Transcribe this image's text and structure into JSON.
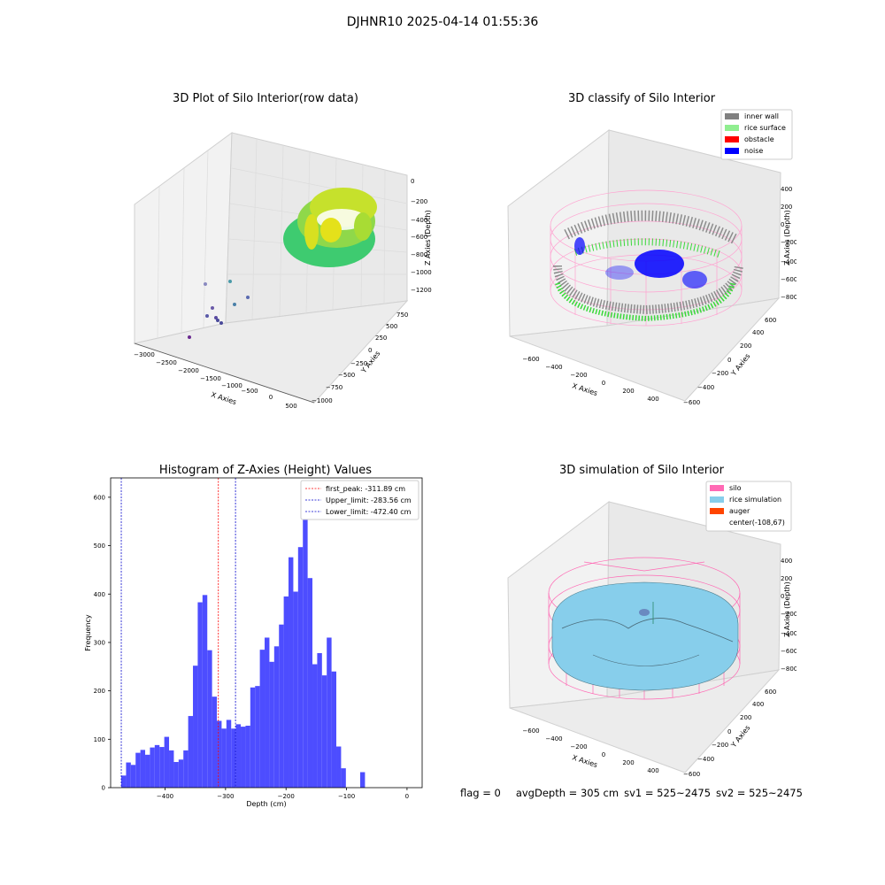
{
  "figure": {
    "suptitle": "DJHNR10 2025-04-14 01:55:36",
    "colors": {
      "hist_bar": "#4d4dff",
      "first_peak_line": "#ff0000",
      "limit_line": "#0000cc",
      "inner_wall": "#808080",
      "rice_surface": "#90ee90",
      "obstacle": "#ff0000",
      "noise": "#0000ff",
      "silo": "#ff69b4",
      "rice_simulation": "#87ceeb",
      "auger": "#ff4500"
    }
  },
  "plot_raw": {
    "title": "3D Plot of Silo Interior(row data)",
    "xlabel": "X Axies",
    "ylabel": "Y Axies",
    "zlabel": "Z Axies (Depth)",
    "xticks": [
      "−3000",
      "−2500",
      "−2000",
      "−1500",
      "−1000",
      "−500",
      "0",
      "500"
    ],
    "yticks": [
      "−1000",
      "−750",
      "−500",
      "−250",
      "0",
      "250",
      "500",
      "750"
    ],
    "zticks": [
      "0",
      "−200",
      "−400",
      "−600",
      "−800",
      "−1000",
      "−1200"
    ]
  },
  "plot_classify": {
    "title": "3D classify of Silo Interior",
    "xlabel": "X Axies",
    "ylabel": "Y Axies",
    "zlabel": "Z Axies (Depth)",
    "xticks": [
      "−600",
      "−400",
      "−200",
      "0",
      "200",
      "400"
    ],
    "yticks": [
      "−600",
      "−400",
      "−200",
      "0",
      "200",
      "400",
      "600"
    ],
    "zticks": [
      "400",
      "200",
      "0",
      "−200",
      "−400",
      "−600",
      "−800"
    ],
    "legend": [
      {
        "label": "inner wall",
        "color": "#808080"
      },
      {
        "label": "rice surface",
        "color": "#90ee90"
      },
      {
        "label": "obstacle",
        "color": "#ff0000"
      },
      {
        "label": "noise",
        "color": "#0000ff"
      }
    ]
  },
  "plot_sim": {
    "title": "3D simulation of Silo Interior",
    "xlabel": "X Axies",
    "ylabel": "Y Axies",
    "zlabel": "Z Axies (Depth)",
    "xticks": [
      "−600",
      "−400",
      "−200",
      "0",
      "200",
      "400"
    ],
    "yticks": [
      "−600",
      "−400",
      "−200",
      "0",
      "200",
      "400",
      "600"
    ],
    "zticks": [
      "400",
      "200",
      "0",
      "−200",
      "−400",
      "−600",
      "−800"
    ],
    "legend": [
      {
        "label": "silo",
        "color": "#ff69b4"
      },
      {
        "label": "rice simulation",
        "color": "#87ceeb"
      },
      {
        "label": "auger",
        "color": "#ff4500"
      },
      {
        "label": "center(-108,67)",
        "color": ""
      }
    ]
  },
  "status": {
    "flag": "flag = 0",
    "avg_depth": "avgDepth = 305 cm",
    "sv1": "sv1 = 525~2475",
    "sv2": "sv2 = 525~2475"
  },
  "chart_data": {
    "type": "bar",
    "title": "Histogram of Z-Axies (Height) Values",
    "xlabel": "Depth (cm)",
    "ylabel": "Frequency",
    "xlim": [
      -490,
      25
    ],
    "ylim": [
      0,
      640
    ],
    "xticks": [
      -400,
      -300,
      -200,
      -100,
      0
    ],
    "yticks": [
      0,
      100,
      200,
      300,
      400,
      500,
      600
    ],
    "bin_start": -472.4,
    "bin_width": 7.9,
    "values": [
      25,
      52,
      47,
      72,
      78,
      68,
      83,
      88,
      84,
      105,
      77,
      53,
      58,
      77,
      148,
      252,
      383,
      398,
      284,
      188,
      138,
      122,
      140,
      122,
      131,
      126,
      128,
      207,
      210,
      285,
      310,
      260,
      292,
      337,
      395,
      476,
      405,
      497,
      598,
      433,
      255,
      278,
      232,
      310,
      240,
      85,
      40,
      0,
      0,
      0,
      32
    ],
    "vlines": [
      {
        "label": "first_peak: -311.89 cm",
        "x": -311.89,
        "color": "#ff0000"
      },
      {
        "label": "Upper_limit: -283.56 cm",
        "x": -283.56,
        "color": "#0000cc"
      },
      {
        "label": "Lower_limit: -472.40 cm",
        "x": -472.4,
        "color": "#0000cc"
      }
    ]
  }
}
